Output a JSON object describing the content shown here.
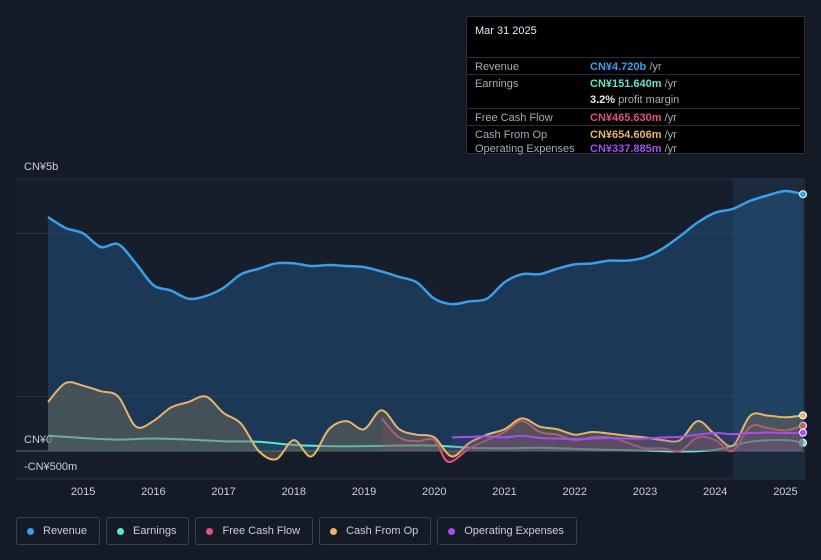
{
  "tooltip": {
    "date": "Mar 31 2025",
    "rows": [
      {
        "label": "Revenue",
        "value": "CN¥4.720b",
        "unit": "/yr",
        "color": "#3a9ee8"
      },
      {
        "label": "Earnings",
        "value": "CN¥151.640m",
        "unit": "/yr",
        "color": "#5ee6cf"
      },
      {
        "label": "",
        "value": "3.2%",
        "unit": "profit margin",
        "color": "#e8eaee"
      },
      {
        "label": "Free Cash Flow",
        "value": "CN¥465.630m",
        "unit": "/yr",
        "color": "#e0517f"
      },
      {
        "label": "Cash From Op",
        "value": "CN¥654.606m",
        "unit": "/yr",
        "color": "#e9b46a"
      },
      {
        "label": "Operating Expenses",
        "value": "CN¥337.885m",
        "unit": "/yr",
        "color": "#a64ff0"
      }
    ]
  },
  "legend": [
    {
      "label": "Revenue",
      "color": "#3a9ee8"
    },
    {
      "label": "Earnings",
      "color": "#5ee6cf"
    },
    {
      "label": "Free Cash Flow",
      "color": "#e0517f"
    },
    {
      "label": "Cash From Op",
      "color": "#e9b46a"
    },
    {
      "label": "Operating Expenses",
      "color": "#a64ff0"
    }
  ],
  "chart_data": {
    "type": "line",
    "y_unit_label_top": "CN¥5b",
    "y_tick_labels": [
      "CN¥5b",
      "CN¥0",
      "-CN¥500m"
    ],
    "ylim": [
      -500,
      5000
    ],
    "xlim": [
      2014.5,
      2025.25
    ],
    "x_tick_labels": [
      "2015",
      "2016",
      "2017",
      "2018",
      "2019",
      "2020",
      "2021",
      "2022",
      "2023",
      "2024",
      "2025"
    ],
    "x_ticks": [
      2015,
      2016,
      2017,
      2018,
      2019,
      2020,
      2021,
      2022,
      2023,
      2024,
      2025
    ],
    "grid": true,
    "legend_position": "bottom",
    "highlight_start": 2024.25,
    "series": [
      {
        "name": "Revenue",
        "color": "#3a9ee8",
        "x": [
          2014.5,
          2014.75,
          2015.0,
          2015.25,
          2015.5,
          2015.75,
          2016.0,
          2016.25,
          2016.5,
          2016.75,
          2017.0,
          2017.25,
          2017.5,
          2017.75,
          2018.0,
          2018.25,
          2018.5,
          2018.75,
          2019.0,
          2019.25,
          2019.5,
          2019.75,
          2020.0,
          2020.25,
          2020.5,
          2020.75,
          2021.0,
          2021.25,
          2021.5,
          2021.75,
          2022.0,
          2022.25,
          2022.5,
          2022.75,
          2023.0,
          2023.25,
          2023.5,
          2023.75,
          2024.0,
          2024.25,
          2024.5,
          2024.75,
          2025.0,
          2025.25
        ],
        "values": [
          4300,
          4100,
          4000,
          3750,
          3800,
          3450,
          3050,
          2950,
          2800,
          2850,
          3000,
          3250,
          3350,
          3450,
          3450,
          3400,
          3420,
          3400,
          3380,
          3300,
          3200,
          3100,
          2800,
          2700,
          2750,
          2800,
          3100,
          3250,
          3250,
          3350,
          3430,
          3450,
          3500,
          3500,
          3560,
          3720,
          3950,
          4200,
          4380,
          4450,
          4600,
          4700,
          4780,
          4720
        ]
      },
      {
        "name": "Earnings",
        "color": "#5ee6cf",
        "x": [
          2014.5,
          2015.0,
          2015.5,
          2016.0,
          2016.5,
          2017.0,
          2017.5,
          2018.0,
          2018.5,
          2019.0,
          2019.5,
          2020.0,
          2020.5,
          2021.0,
          2021.5,
          2022.0,
          2022.5,
          2023.0,
          2023.5,
          2024.0,
          2024.5,
          2025.0,
          2025.25
        ],
        "values": [
          280,
          240,
          210,
          230,
          210,
          180,
          170,
          110,
          90,
          90,
          100,
          100,
          60,
          50,
          60,
          40,
          20,
          10,
          -10,
          20,
          170,
          200,
          151.64
        ]
      },
      {
        "name": "Free Cash Flow",
        "color": "#e0517f",
        "x": [
          2019.25,
          2019.5,
          2019.75,
          2020.0,
          2020.2,
          2020.5,
          2020.75,
          2021.0,
          2021.25,
          2021.5,
          2021.75,
          2022.0,
          2022.25,
          2022.5,
          2022.75,
          2023.0,
          2023.25,
          2023.5,
          2023.75,
          2024.0,
          2024.25,
          2024.5,
          2024.75,
          2025.0,
          2025.25
        ],
        "values": [
          600,
          250,
          180,
          200,
          -200,
          50,
          200,
          350,
          550,
          350,
          300,
          200,
          250,
          250,
          150,
          50,
          50,
          0,
          250,
          200,
          0,
          450,
          420,
          380,
          465.63
        ]
      },
      {
        "name": "Cash From Op",
        "color": "#e9b46a",
        "x": [
          2014.5,
          2014.75,
          2015.0,
          2015.25,
          2015.5,
          2015.75,
          2016.0,
          2016.25,
          2016.5,
          2016.75,
          2017.0,
          2017.25,
          2017.5,
          2017.75,
          2018.0,
          2018.25,
          2018.5,
          2018.75,
          2019.0,
          2019.25,
          2019.5,
          2019.75,
          2020.0,
          2020.25,
          2020.5,
          2020.75,
          2021.0,
          2021.25,
          2021.5,
          2021.75,
          2022.0,
          2022.25,
          2022.5,
          2022.75,
          2023.0,
          2023.25,
          2023.5,
          2023.75,
          2024.0,
          2024.25,
          2024.5,
          2024.75,
          2025.0,
          2025.25
        ],
        "values": [
          900,
          1250,
          1200,
          1100,
          1000,
          450,
          550,
          800,
          900,
          1000,
          700,
          500,
          0,
          -150,
          200,
          -100,
          400,
          550,
          400,
          750,
          400,
          300,
          250,
          -100,
          150,
          300,
          400,
          600,
          450,
          400,
          300,
          350,
          320,
          280,
          250,
          200,
          200,
          550,
          300,
          100,
          650,
          650,
          620,
          654.606
        ]
      },
      {
        "name": "Operating Expenses",
        "color": "#a64ff0",
        "x": [
          2020.25,
          2020.5,
          2020.75,
          2021.0,
          2021.25,
          2021.5,
          2021.75,
          2022.0,
          2022.25,
          2022.5,
          2022.75,
          2023.0,
          2023.25,
          2023.5,
          2023.75,
          2024.0,
          2024.25,
          2024.5,
          2024.75,
          2025.0,
          2025.25
        ],
        "values": [
          250,
          260,
          270,
          250,
          280,
          240,
          230,
          220,
          230,
          240,
          230,
          230,
          250,
          260,
          300,
          330,
          310,
          330,
          340,
          330,
          337.885
        ]
      }
    ]
  }
}
